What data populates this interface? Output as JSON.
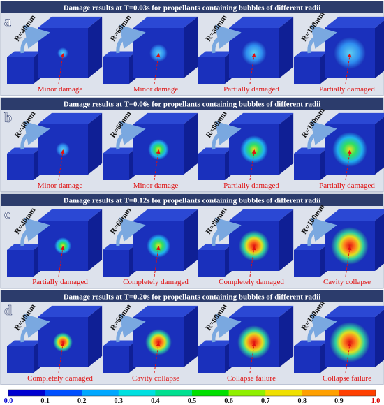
{
  "panels": [
    {
      "letter": "a",
      "title": "Damage results at T=0.03s for propellants containing bubbles of different radii",
      "items": [
        {
          "radius": "R=40mm",
          "annotation": "Minor damage"
        },
        {
          "radius": "R=60mm",
          "annotation": "Minor damage"
        },
        {
          "radius": "R=80mm",
          "annotation": "Partially damaged"
        },
        {
          "radius": "R=100mm",
          "annotation": "Partially damaged"
        }
      ]
    },
    {
      "letter": "b",
      "title": "Damage results at T=0.06s for propellants containing bubbles of different radii",
      "items": [
        {
          "radius": "R=40mm",
          "annotation": "Minor damage"
        },
        {
          "radius": "R=60mm",
          "annotation": "Minor damage"
        },
        {
          "radius": "R=80mm",
          "annotation": "Partially damaged"
        },
        {
          "radius": "R=100mm",
          "annotation": "Partially damaged"
        }
      ]
    },
    {
      "letter": "c",
      "title": "Damage results at T=0.12s for propellants containing bubbles of different radii",
      "items": [
        {
          "radius": "R=40mm",
          "annotation": "Partially damaged"
        },
        {
          "radius": "R=60mm",
          "annotation": "Completely damaged"
        },
        {
          "radius": "R=80mm",
          "annotation": "Completely damaged"
        },
        {
          "radius": "R=100mm",
          "annotation": "Cavity collapse"
        }
      ]
    },
    {
      "letter": "d",
      "title": "Damage results at T=0.20s for propellants containing bubbles of different radii",
      "items": [
        {
          "radius": "R=40mm",
          "annotation": "Completely damaged"
        },
        {
          "radius": "R=60mm",
          "annotation": "Cavity collapse"
        },
        {
          "radius": "R=80mm",
          "annotation": "Collapse failure"
        },
        {
          "radius": "R=100mm",
          "annotation": "Collapse failure"
        }
      ]
    }
  ],
  "colorbar": {
    "labels": [
      "0.0",
      "0.1",
      "0.2",
      "0.3",
      "0.4",
      "0.5",
      "0.6",
      "0.7",
      "0.8",
      "0.9",
      "1.0"
    ]
  }
}
